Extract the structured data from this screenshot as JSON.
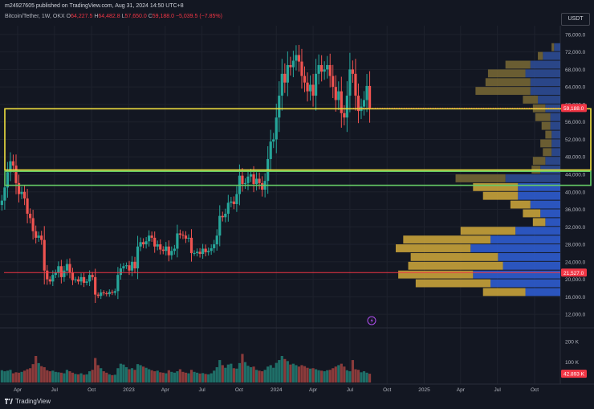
{
  "header": {
    "text": "m24927605 published on TradingView.com, Aug 31, 2024 14:50 UTC+8"
  },
  "legend": {
    "symbol": "Bitcoin/Tether, 1W, OKX",
    "open_label": "O",
    "open": "64,227.5",
    "high_label": "H",
    "high": "64,482.8",
    "low_label": "L",
    "low": "57,650.0",
    "close_label": "C",
    "close": "59,188.0",
    "change": "−5,039.5 (−7.85%)"
  },
  "currency": "USDT",
  "footer": {
    "brand": "TradingView",
    "logo_icon": "tradingview-logo-icon"
  },
  "colors": {
    "up": "#26a69a",
    "down": "#ef5350",
    "yellow_box": "#f0e040",
    "green_box": "#66cc66",
    "red_line": "#f23645",
    "vp_blue": "#2f5ccf",
    "vp_gold": "#c8a23a"
  },
  "chart_data": {
    "type": "candlestick",
    "price_axis": {
      "ylim": [
        10000,
        78000
      ],
      "ticks": [
        "76,000.0",
        "72,000.0",
        "68,000.0",
        "64,000.0",
        "60,000.0",
        "56,000.0",
        "52,000.0",
        "48,000.0",
        "44,000.0",
        "40,000.0",
        "36,000.0",
        "32,000.0",
        "28,000.0",
        "24,000.0",
        "20,000.0",
        "16,000.0",
        "12,000.0"
      ],
      "tick_values": [
        76000,
        72000,
        68000,
        64000,
        60000,
        56000,
        52000,
        48000,
        44000,
        40000,
        36000,
        32000,
        28000,
        24000,
        20000,
        16000,
        12000
      ]
    },
    "price_labels": [
      {
        "value": 59188,
        "text": "59,188.0",
        "color": "#f23645"
      },
      {
        "value": 21527,
        "text": "21,527.0",
        "color": "#f23645"
      }
    ],
    "time_axis": {
      "labels": [
        "Apr",
        "Jul",
        "Oct",
        "2023",
        "Apr",
        "Jul",
        "Oct",
        "2024",
        "Apr",
        "Jul",
        "Oct",
        "2025",
        "Apr",
        "Jul",
        "Oct"
      ],
      "dates": [
        "2022-04-01",
        "2022-07-01",
        "2022-10-01",
        "2023-01-01",
        "2023-04-01",
        "2023-07-01",
        "2023-10-01",
        "2024-01-01",
        "2024-04-01",
        "2024-07-01",
        "2024-10-01",
        "2025-01-01",
        "2025-04-01",
        "2025-07-01",
        "2025-10-01"
      ]
    },
    "candle_start": "2022-02-21",
    "candle_interval": "1W",
    "closes": [
      38000,
      41000,
      44500,
      47000,
      46000,
      42000,
      39500,
      40000,
      38500,
      35000,
      34000,
      31000,
      29500,
      30000,
      29000,
      22000,
      20000,
      19500,
      21000,
      21500,
      23000,
      20500,
      22000,
      23500,
      21500,
      19800,
      20000,
      19500,
      20500,
      19200,
      19500,
      21000,
      20500,
      16500,
      16200,
      17000,
      16800,
      16600,
      17100,
      16900,
      17300,
      21000,
      22500,
      23000,
      23200,
      22000,
      24000,
      22500,
      27500,
      28500,
      28000,
      28700,
      30000,
      29500,
      27500,
      28000,
      26800,
      26500,
      27500,
      25500,
      26500,
      27000,
      30500,
      30200,
      30000,
      29300,
      29500,
      26000,
      26000,
      26300,
      25800,
      27000,
      26200,
      26500,
      27100,
      28000,
      30000,
      34500,
      34200,
      35000,
      37500,
      37800,
      37200,
      39500,
      43700,
      41800,
      42000,
      43500,
      44000,
      41800,
      43000,
      42000,
      40500,
      42500,
      47500,
      51500,
      52000,
      57000,
      62000,
      67000,
      65000,
      69000,
      68500,
      70000,
      71300,
      69800,
      66500,
      65000,
      63000,
      64500,
      62000,
      67000,
      69000,
      67500,
      68000,
      69000,
      66500,
      64000,
      61000,
      63000,
      58000,
      57000,
      62000,
      68000,
      67000,
      62000,
      58500,
      59500,
      61000,
      64227,
      59188
    ],
    "volume_axis": {
      "ticks": [
        "200 K",
        "100 K"
      ],
      "tick_values": [
        200000,
        100000
      ],
      "last_label": "42.893 K",
      "last_value": 42893
    },
    "volumes": [
      60000,
      55000,
      58000,
      62000,
      45000,
      50000,
      48000,
      52000,
      58000,
      65000,
      70000,
      90000,
      130000,
      95000,
      80000,
      75000,
      60000,
      55000,
      58000,
      52000,
      50000,
      48000,
      45000,
      62000,
      55000,
      48000,
      42000,
      40000,
      45000,
      38000,
      40000,
      55000,
      62000,
      120000,
      85000,
      70000,
      55000,
      48000,
      40000,
      36000,
      38000,
      70000,
      92000,
      88000,
      75000,
      65000,
      70000,
      62000,
      90000,
      85000,
      78000,
      72000,
      65000,
      60000,
      55000,
      58000,
      50000,
      48000,
      45000,
      60000,
      52000,
      48000,
      55000,
      65000,
      52000,
      48000,
      45000,
      62000,
      52000,
      48000,
      44000,
      46000,
      42000,
      40000,
      45000,
      58000,
      75000,
      110000,
      85000,
      72000,
      88000,
      92000,
      70000,
      68000,
      95000,
      140000,
      100000,
      82000,
      75000,
      78000,
      62000,
      58000,
      55000,
      62000,
      78000,
      85000,
      72000,
      96000,
      110000,
      130000,
      115000,
      105000,
      88000,
      92000,
      85000,
      78000,
      85000,
      80000,
      72000,
      68000,
      70000,
      65000,
      60000,
      58000,
      55000,
      60000,
      62000,
      70000,
      78000,
      85000,
      92000,
      78000,
      60000,
      55000,
      110000,
      65000,
      62000,
      50000,
      55000,
      48000,
      42893
    ],
    "volume_profile": {
      "rows": [
        {
          "low": 72000,
          "high": 74000,
          "up": 2500,
          "down": 1000
        },
        {
          "low": 70000,
          "high": 72000,
          "up": 7000,
          "down": 2000
        },
        {
          "low": 68000,
          "high": 70000,
          "up": 12000,
          "down": 10000
        },
        {
          "low": 66000,
          "high": 68000,
          "up": 14000,
          "down": 15000
        },
        {
          "low": 64000,
          "high": 66000,
          "up": 12000,
          "down": 18000
        },
        {
          "low": 62000,
          "high": 64000,
          "up": 12000,
          "down": 22000
        },
        {
          "low": 60000,
          "high": 62000,
          "up": 9000,
          "down": 6000
        },
        {
          "low": 58000,
          "high": 60000,
          "up": 6000,
          "down": 5000
        },
        {
          "low": 56000,
          "high": 58000,
          "up": 4000,
          "down": 6000
        },
        {
          "low": 54000,
          "high": 56000,
          "up": 4000,
          "down": 3500
        },
        {
          "low": 52000,
          "high": 54000,
          "up": 3500,
          "down": 2500
        },
        {
          "low": 50000,
          "high": 52000,
          "up": 3500,
          "down": 4500
        },
        {
          "low": 48000,
          "high": 50000,
          "up": 3500,
          "down": 3500
        },
        {
          "low": 46000,
          "high": 48000,
          "up": 6000,
          "down": 5000
        },
        {
          "low": 44000,
          "high": 46000,
          "up": 8000,
          "down": 3500
        },
        {
          "low": 42000,
          "high": 44000,
          "up": 22000,
          "down": 20000
        },
        {
          "low": 40000,
          "high": 42000,
          "up": 17000,
          "down": 18000
        },
        {
          "low": 38000,
          "high": 40000,
          "up": 17000,
          "down": 14000
        },
        {
          "low": 36000,
          "high": 38000,
          "up": 12000,
          "down": 8000
        },
        {
          "low": 34000,
          "high": 36000,
          "up": 8000,
          "down": 7000
        },
        {
          "low": 32000,
          "high": 34000,
          "up": 6000,
          "down": 5000
        },
        {
          "low": 30000,
          "high": 32000,
          "up": 18000,
          "down": 22000
        },
        {
          "low": 28000,
          "high": 30000,
          "up": 28000,
          "down": 35000
        },
        {
          "low": 26000,
          "high": 28000,
          "up": 36000,
          "down": 30000
        },
        {
          "low": 24000,
          "high": 26000,
          "up": 25000,
          "down": 35000
        },
        {
          "low": 22000,
          "high": 24000,
          "up": 23000,
          "down": 38000
        },
        {
          "low": 20000,
          "high": 22000,
          "up": 35000,
          "down": 30000
        },
        {
          "low": 18000,
          "high": 20000,
          "up": 28000,
          "down": 30000
        },
        {
          "low": 16000,
          "high": 18000,
          "up": 14000,
          "down": 17000
        }
      ]
    },
    "zones": [
      {
        "name": "yellow-zone",
        "low": 45000,
        "high": 59000,
        "color": "#f0e040"
      },
      {
        "name": "green-zone",
        "low": 41500,
        "high": 44700,
        "color": "#66cc66"
      }
    ],
    "hlines": [
      {
        "value": 21527,
        "color": "#f23645"
      }
    ],
    "grid": true
  }
}
